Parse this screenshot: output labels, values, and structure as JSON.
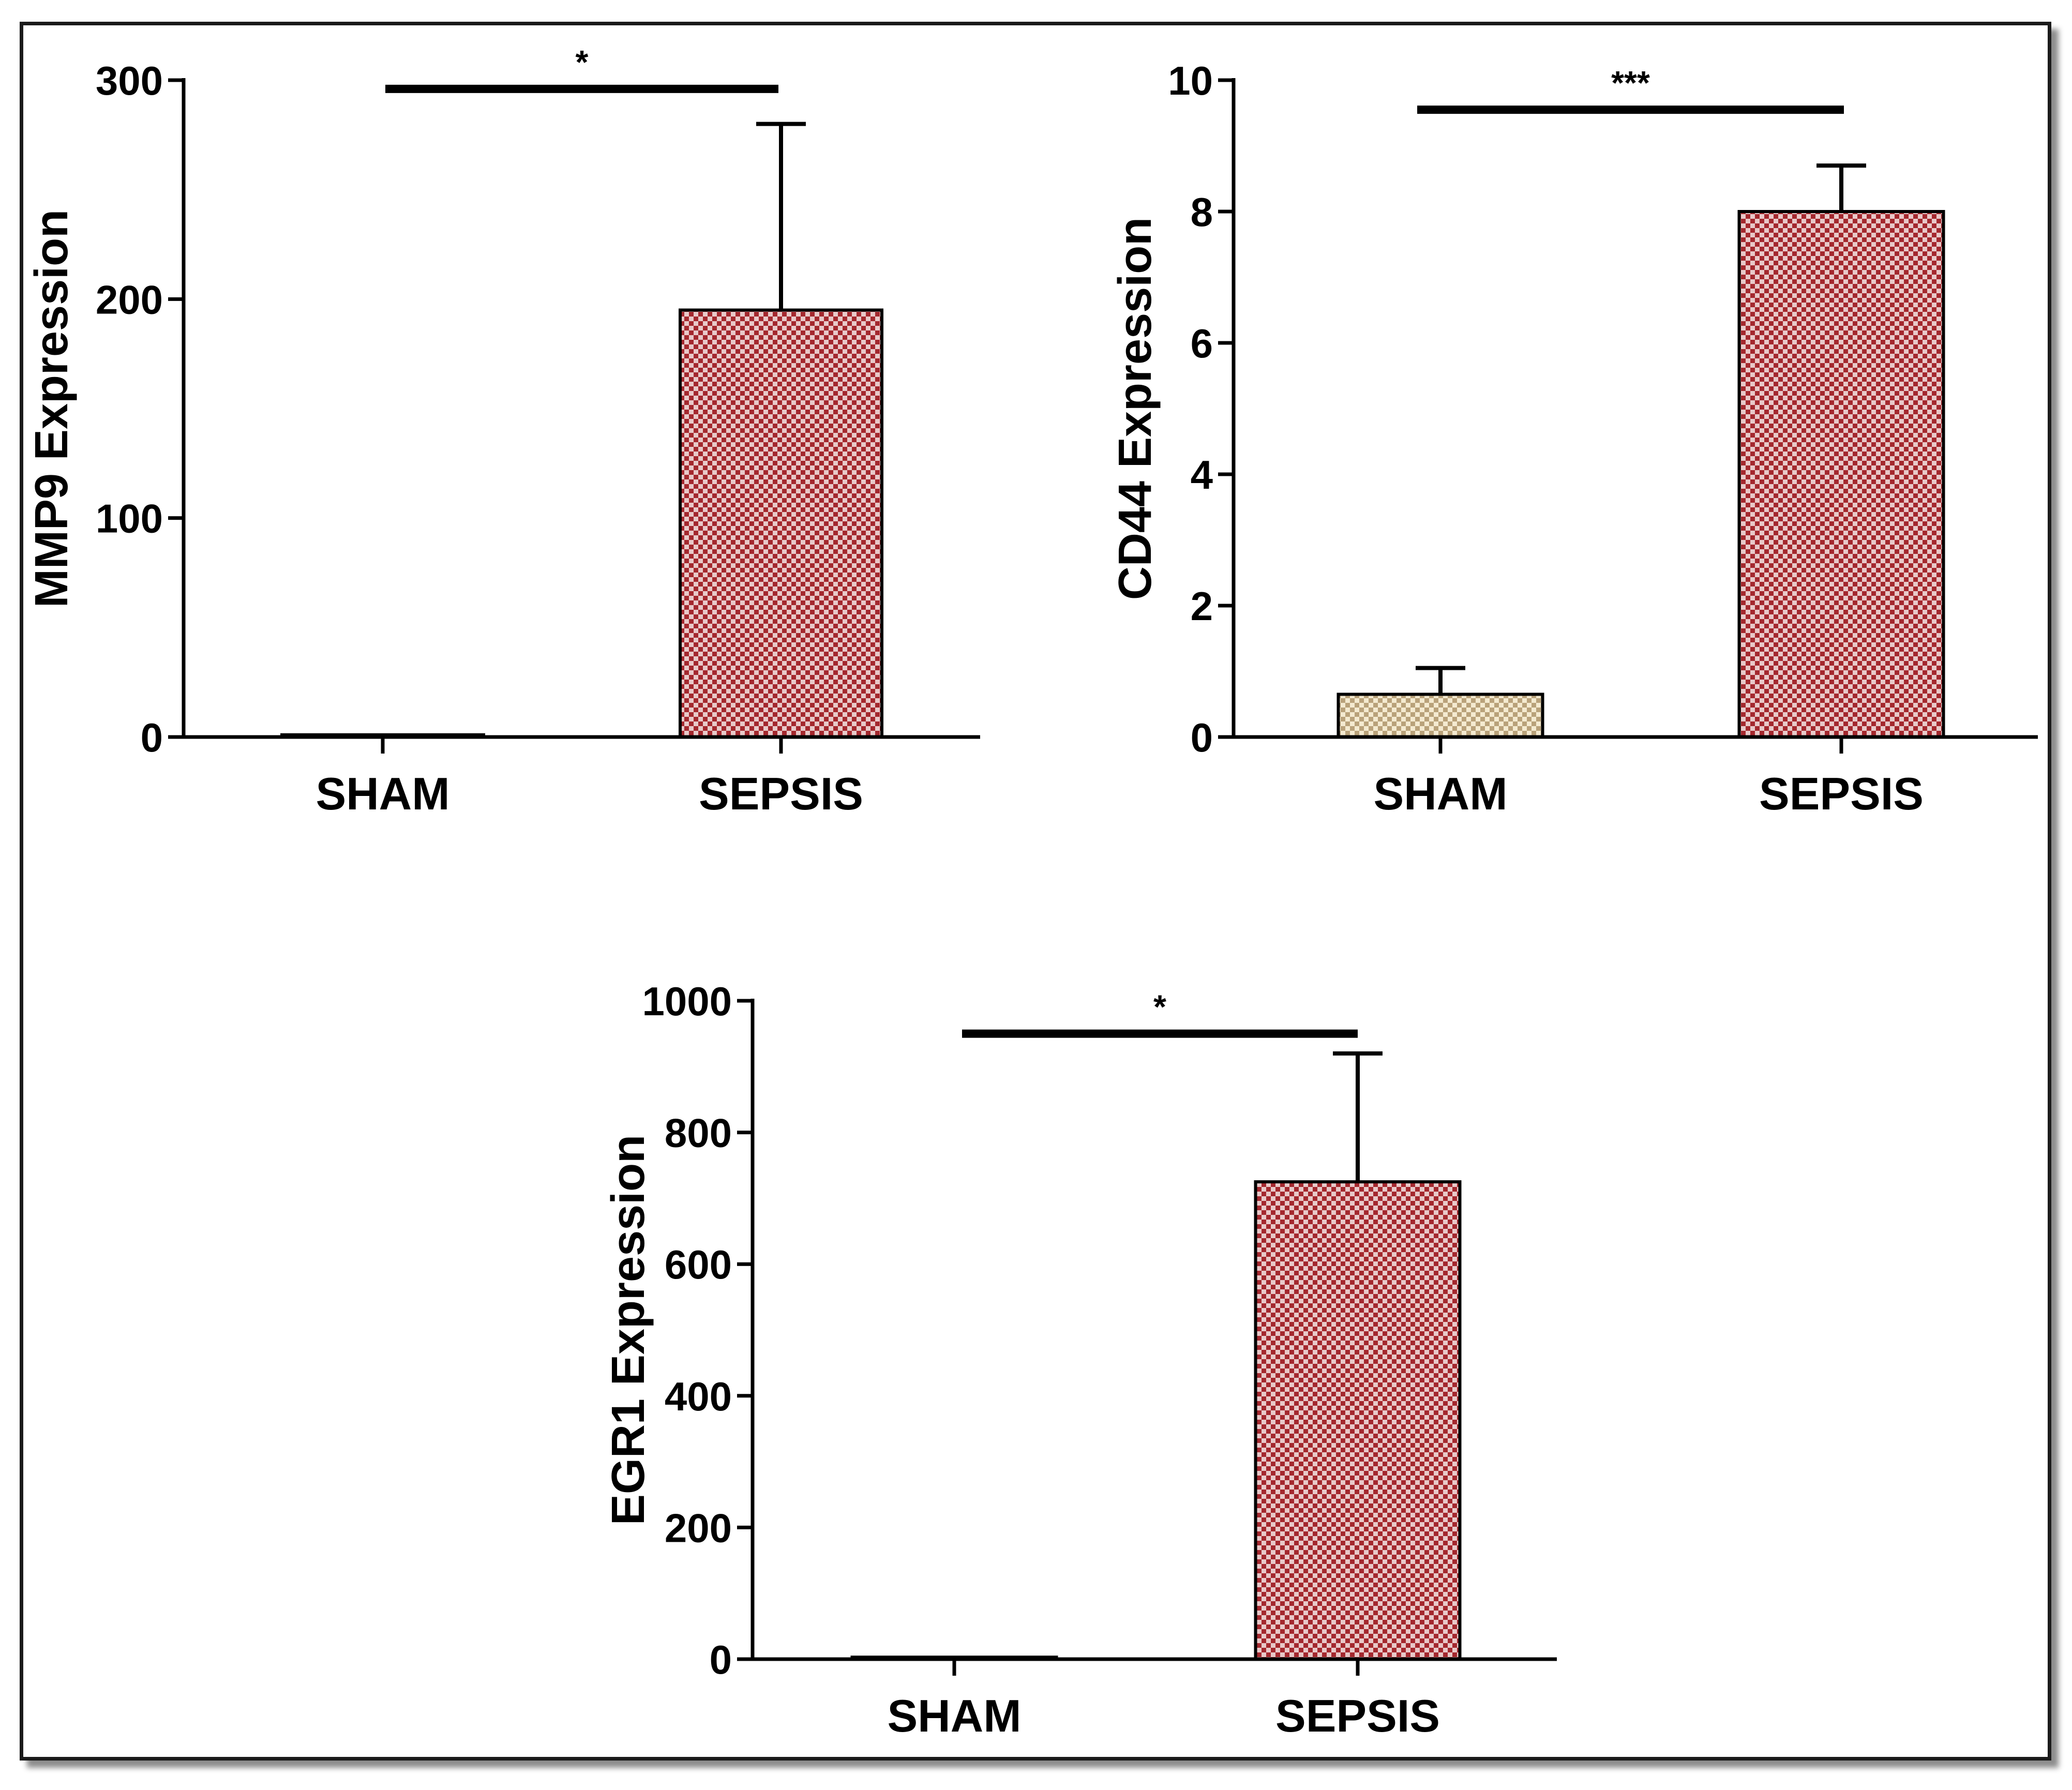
{
  "chart_data": [
    {
      "type": "bar",
      "id": "mmp9",
      "title": "",
      "xlabel": "",
      "ylabel": "MMP9 Expression",
      "categories": [
        "SHAM",
        "SEPSIS"
      ],
      "values": [
        1,
        195
      ],
      "error": [
        0,
        85
      ],
      "ylim": [
        0,
        300
      ],
      "yticks": [
        0,
        100,
        200,
        300
      ],
      "significance": {
        "label": "*",
        "y": 296
      },
      "colors": [
        "#e3d2ab",
        "#a4282e"
      ]
    },
    {
      "type": "bar",
      "id": "cd44",
      "title": "",
      "xlabel": "",
      "ylabel": "CD44 Expression",
      "categories": [
        "SHAM",
        "SEPSIS"
      ],
      "values": [
        0.65,
        8.0
      ],
      "error": [
        0.4,
        0.7
      ],
      "ylim": [
        0,
        10
      ],
      "yticks": [
        0,
        2,
        4,
        6,
        8,
        10
      ],
      "significance": {
        "label": "***",
        "y": 9.55
      },
      "colors": [
        "#e3d2ab",
        "#a4282e"
      ]
    },
    {
      "type": "bar",
      "id": "egr1",
      "title": "",
      "xlabel": "",
      "ylabel": "EGR1 Expression",
      "categories": [
        "SHAM",
        "SEPSIS"
      ],
      "values": [
        3,
        725
      ],
      "error": [
        0,
        195
      ],
      "ylim": [
        0,
        1000
      ],
      "yticks": [
        0,
        200,
        400,
        600,
        800,
        1000
      ],
      "significance": {
        "label": "*",
        "y": 950
      },
      "colors": [
        "#e3d2ab",
        "#a4282e"
      ]
    }
  ]
}
